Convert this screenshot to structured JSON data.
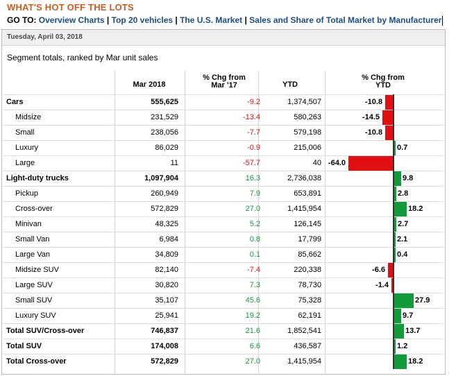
{
  "header": {
    "title": "WHAT'S HOT OFF THE LOTS",
    "goto_label": "GO TO:",
    "links": [
      "Overview Charts",
      "Top 20 vehicles",
      "The U.S. Market",
      "Sales and Share of Total Market by Manufacturer"
    ]
  },
  "date": "Tuesday, April 03, 2018",
  "subtitle": "Segment totals, ranked by Mar unit sales",
  "table": {
    "columns": {
      "mar": "Mar 2018",
      "chg_l1": "% Chg from",
      "chg_l2": "Mar '17",
      "ytd": "YTD",
      "ytdchg_l1": "% Chg from",
      "ytdchg_l2": "YTD"
    },
    "rows": [
      {
        "name": "Cars",
        "mar": "555,625",
        "chg": "-9.2",
        "ytd": "1,374,507",
        "ytd_chg": -10.8,
        "ytd_chg_label": "-10.8",
        "level": "main"
      },
      {
        "name": "Midsize",
        "mar": "231,529",
        "chg": "-13.4",
        "ytd": "580,263",
        "ytd_chg": -14.5,
        "ytd_chg_label": "-14.5",
        "level": "sub"
      },
      {
        "name": "Small",
        "mar": "238,056",
        "chg": "-7.7",
        "ytd": "579,198",
        "ytd_chg": -10.8,
        "ytd_chg_label": "-10.8",
        "level": "sub"
      },
      {
        "name": "Luxury",
        "mar": "86,029",
        "chg": "-0.9",
        "ytd": "215,006",
        "ytd_chg": 0.7,
        "ytd_chg_label": "0.7",
        "level": "sub"
      },
      {
        "name": "Large",
        "mar": "11",
        "chg": "-57.7",
        "ytd": "40",
        "ytd_chg": -64.0,
        "ytd_chg_label": "-64.0",
        "level": "sub"
      },
      {
        "name": "Light-duty trucks",
        "mar": "1,097,904",
        "chg": "16.3",
        "ytd": "2,736,038",
        "ytd_chg": 9.8,
        "ytd_chg_label": "9.8",
        "level": "main"
      },
      {
        "name": "Pickup",
        "mar": "260,949",
        "chg": "7.9",
        "ytd": "653,891",
        "ytd_chg": 2.8,
        "ytd_chg_label": "2.8",
        "level": "sub"
      },
      {
        "name": "Cross-over",
        "mar": "572,829",
        "chg": "27.0",
        "ytd": "1,415,954",
        "ytd_chg": 18.2,
        "ytd_chg_label": "18.2",
        "level": "sub"
      },
      {
        "name": "Minivan",
        "mar": "48,325",
        "chg": "5.2",
        "ytd": "126,145",
        "ytd_chg": 2.7,
        "ytd_chg_label": "2.7",
        "level": "sub"
      },
      {
        "name": "Small Van",
        "mar": "6,984",
        "chg": "0.8",
        "ytd": "17,799",
        "ytd_chg": 2.1,
        "ytd_chg_label": "2.1",
        "level": "sub"
      },
      {
        "name": "Large Van",
        "mar": "34,809",
        "chg": "0.1",
        "ytd": "85,662",
        "ytd_chg": 0.4,
        "ytd_chg_label": "0.4",
        "level": "sub"
      },
      {
        "name": "Midsize SUV",
        "mar": "82,140",
        "chg": "-7.4",
        "ytd": "220,338",
        "ytd_chg": -6.6,
        "ytd_chg_label": "-6.6",
        "level": "sub"
      },
      {
        "name": "Large SUV",
        "mar": "30,820",
        "chg": "7.3",
        "ytd": "78,730",
        "ytd_chg": -1.4,
        "ytd_chg_label": "-1.4",
        "level": "sub"
      },
      {
        "name": "Small SUV",
        "mar": "35,107",
        "chg": "45.6",
        "ytd": "75,328",
        "ytd_chg": 27.9,
        "ytd_chg_label": "27.9",
        "level": "sub"
      },
      {
        "name": "Luxury SUV",
        "mar": "25,941",
        "chg": "19.2",
        "ytd": "62,191",
        "ytd_chg": 9.7,
        "ytd_chg_label": "9.7",
        "level": "sub"
      },
      {
        "name": "Total SUV/Cross-over",
        "mar": "746,837",
        "chg": "21.6",
        "ytd": "1,852,541",
        "ytd_chg": 13.7,
        "ytd_chg_label": "13.7",
        "level": "main"
      },
      {
        "name": "Total SUV",
        "mar": "174,008",
        "chg": "6.6",
        "ytd": "436,587",
        "ytd_chg": 1.2,
        "ytd_chg_label": "1.2",
        "level": "main"
      },
      {
        "name": "Total Cross-over",
        "mar": "572,829",
        "chg": "27.0",
        "ytd": "1,415,954",
        "ytd_chg": 18.2,
        "ytd_chg_label": "18.2",
        "level": "main"
      }
    ]
  },
  "colors": {
    "title": "#d35a1a",
    "link": "#1a4d8c",
    "negative": "#e01010",
    "positive": "#139a3a"
  }
}
